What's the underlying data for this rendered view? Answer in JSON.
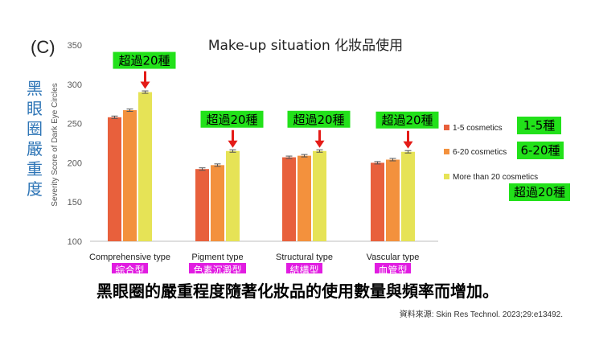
{
  "panel_label": "(C)",
  "y_axis_zh": "黑眼圈嚴重度",
  "caption": "黑眼圈的嚴重程度隨著化妝品的使用數量與頻率而增加。",
  "source": "資料來源: Skin Res Technol. 2023;29:e13492.",
  "colors": {
    "series": [
      "#e8603c",
      "#f3913d",
      "#e6e356"
    ],
    "highlight_green": "#22e11a",
    "highlight_magenta": "#e11ce1",
    "arrow": "#e41b17",
    "axis_text": "#595959"
  },
  "chart_data": {
    "type": "bar",
    "title": "Make-up situation 化妝品使用",
    "ylabel": "Severity Score of Dark Eye Circles",
    "xlabel": "",
    "ylim": [
      100,
      350
    ],
    "yticks": [
      100,
      150,
      200,
      250,
      300,
      350
    ],
    "categories": [
      "Comprehensive type",
      "Pigment type",
      "Structural type",
      "Vascular type"
    ],
    "category_labels_zh": [
      "綜合型",
      "色素沉澱型",
      "結構型",
      "血管型"
    ],
    "series": [
      {
        "name": "1-5 cosmetics",
        "label_zh": "1-5種",
        "values": [
          258,
          192,
          207,
          200
        ]
      },
      {
        "name": "6-20 cosmetics",
        "label_zh": "6-20種",
        "values": [
          267,
          197,
          209,
          204
        ]
      },
      {
        "name": "More than 20 cosmetics",
        "label_zh": "超過20種",
        "values": [
          290,
          215,
          215,
          214
        ]
      }
    ],
    "annotation_zh": "超過20種",
    "grid": false,
    "legend_position": "right"
  }
}
